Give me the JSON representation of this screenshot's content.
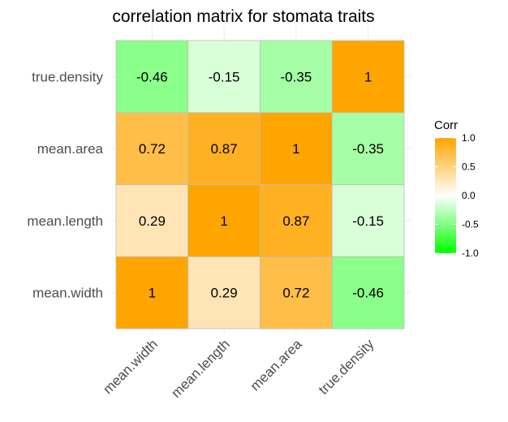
{
  "chart_data": {
    "type": "heatmap",
    "title": "correlation matrix for stomata traits",
    "x_categories": [
      "mean.width",
      "mean.length",
      "mean.area",
      "true.density"
    ],
    "y_categories": [
      "mean.width",
      "mean.length",
      "mean.area",
      "true.density"
    ],
    "values": [
      [
        1,
        0.29,
        0.72,
        -0.46
      ],
      [
        0.29,
        1,
        0.87,
        -0.15
      ],
      [
        0.72,
        0.87,
        1,
        -0.35
      ],
      [
        -0.46,
        -0.15,
        -0.35,
        1
      ]
    ],
    "labels": [
      [
        "1",
        "0.29",
        "0.72",
        "-0.46"
      ],
      [
        "0.29",
        "1",
        "0.87",
        "-0.15"
      ],
      [
        "0.72",
        "0.87",
        "1",
        "-0.35"
      ],
      [
        "-0.46",
        "-0.15",
        "-0.35",
        "1"
      ]
    ],
    "legend": {
      "title": "Corr",
      "ticks": [
        "1.0",
        "0.5",
        "0.0",
        "-0.5",
        "-1.0"
      ],
      "tick_values": [
        1,
        0.5,
        0,
        -0.5,
        -1
      ],
      "range": [
        -1,
        1
      ],
      "placement": "right"
    },
    "colors": {
      "high": "#FFA500",
      "mid": "#FFFFFF",
      "low": "#00FF00",
      "grid": "#EBEBEB",
      "cell_border": "#BDBDBD"
    }
  }
}
